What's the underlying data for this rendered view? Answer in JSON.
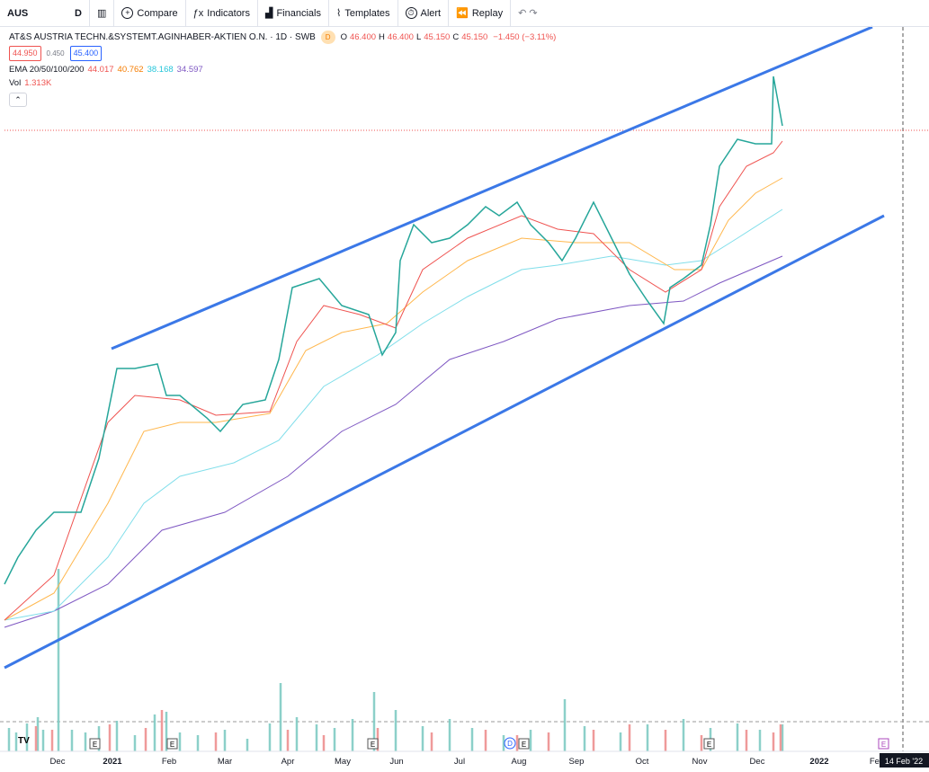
{
  "toolbar": {
    "symbol": "AUS",
    "interval": "D",
    "buttons": [
      "Compare",
      "Indicators",
      "Financials",
      "Templates",
      "Alert",
      "Replay"
    ]
  },
  "legend": {
    "title": "AT&S AUSTRIA TECHN.&SYSTEMT.AGINHABER-AKTIEN O.N. · 1D · SWB",
    "badge": "D",
    "ohlc": [
      {
        "label": "O",
        "value": "46.400"
      },
      {
        "label": "H",
        "value": "46.400"
      },
      {
        "label": "L",
        "value": "45.150"
      },
      {
        "label": "C",
        "value": "45.150"
      }
    ],
    "change": "−1.450 (−3.11%)",
    "bid": "44.950",
    "spread": "0.450",
    "ask": "45.400",
    "ema_label": "EMA 20/50/100/200",
    "ema_values": [
      "44.017",
      "40.762",
      "38.168",
      "34.597"
    ],
    "vol_label": "Vol",
    "vol_value": "1.313K"
  },
  "time_axis": {
    "labels": [
      "Dec",
      "2021",
      "Feb",
      "Mar",
      "Apr",
      "May",
      "Jun",
      "Jul",
      "Aug",
      "Sep",
      "Oct",
      "Nov",
      "Dec",
      "2022",
      "Feb"
    ],
    "cursor_date": "14 Feb '22"
  },
  "events": {
    "earnings": "E",
    "dividend": "D"
  }
}
